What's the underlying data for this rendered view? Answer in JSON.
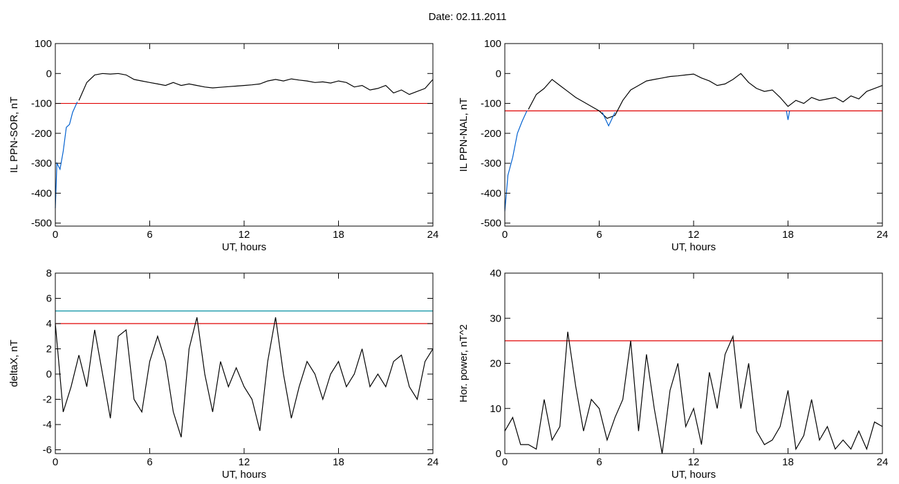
{
  "title": "Date:  02.11.2011",
  "chart_data": [
    {
      "type": "line",
      "ylabel": "IL PPN-SOR, nT",
      "xlabel": "UT, hours",
      "xlim": [
        0,
        24
      ],
      "xticks": [
        0,
        6,
        12,
        18,
        24
      ],
      "ylim": [
        -510,
        100
      ],
      "yticks": [
        100,
        0,
        -100,
        -200,
        -300,
        -400,
        -500
      ],
      "hlines": [
        {
          "value": -100,
          "color": "#e00000"
        }
      ],
      "series": [
        {
          "color": "#000000",
          "x": [
            1.5,
            2,
            2.5,
            3,
            3.5,
            4,
            4.5,
            5,
            5.5,
            6,
            6.5,
            7,
            7.5,
            8,
            8.5,
            9,
            9.5,
            10,
            10.5,
            11,
            11.5,
            12,
            12.5,
            13,
            13.5,
            14,
            14.5,
            15,
            15.5,
            16,
            16.5,
            17,
            17.5,
            18,
            18.5,
            19,
            19.5,
            20,
            20.5,
            21,
            21.5,
            22,
            22.5,
            23,
            23.5,
            24
          ],
          "values": [
            -90,
            -30,
            -5,
            0,
            -2,
            0,
            -5,
            -20,
            -25,
            -30,
            -35,
            -40,
            -30,
            -40,
            -35,
            -40,
            -45,
            -48,
            -46,
            -44,
            -42,
            -40,
            -38,
            -35,
            -25,
            -20,
            -25,
            -18,
            -22,
            -25,
            -30,
            -28,
            -32,
            -25,
            -30,
            -45,
            -40,
            -55,
            -50,
            -40,
            -65,
            -55,
            -70,
            -60,
            -50,
            -20
          ]
        },
        {
          "color": "#0060d0",
          "x": [
            0,
            0.1,
            0.3,
            0.5,
            0.7,
            0.9,
            1.1,
            1.4
          ],
          "values": [
            -450,
            -300,
            -320,
            -260,
            -180,
            -170,
            -130,
            -95
          ]
        }
      ]
    },
    {
      "type": "line",
      "ylabel": "IL PPN-NAL, nT",
      "xlabel": "UT, hours",
      "xlim": [
        0,
        24
      ],
      "xticks": [
        0,
        6,
        12,
        18,
        24
      ],
      "ylim": [
        -510,
        100
      ],
      "yticks": [
        100,
        0,
        -100,
        -200,
        -300,
        -400,
        -500
      ],
      "hlines": [
        {
          "value": -125,
          "color": "#e00000"
        }
      ],
      "series": [
        {
          "color": "#000000",
          "x": [
            1.5,
            2,
            2.5,
            3,
            3.5,
            4,
            4.5,
            5,
            5.5,
            6,
            6.5,
            7,
            7.5,
            8,
            8.5,
            9,
            9.5,
            10,
            10.5,
            11,
            11.5,
            12,
            12.5,
            13,
            13.5,
            14,
            14.5,
            15,
            15.5,
            16,
            16.5,
            17,
            17.5,
            18,
            18.5,
            19,
            19.5,
            20,
            20.5,
            21,
            21.5,
            22,
            22.5,
            23,
            23.5,
            24
          ],
          "values": [
            -120,
            -70,
            -50,
            -20,
            -40,
            -60,
            -80,
            -95,
            -110,
            -125,
            -150,
            -140,
            -90,
            -55,
            -40,
            -25,
            -20,
            -15,
            -10,
            -8,
            -5,
            -2,
            -15,
            -25,
            -40,
            -35,
            -20,
            0,
            -30,
            -50,
            -60,
            -55,
            -80,
            -110,
            -90,
            -100,
            -80,
            -90,
            -85,
            -80,
            -95,
            -75,
            -85,
            -60,
            -50,
            -40
          ]
        },
        {
          "color": "#0060d0",
          "x": [
            0,
            0.2,
            0.5,
            0.8,
            1.1,
            1.4,
            1.5,
            6.2,
            6.6,
            7,
            7.1,
            17.9,
            18,
            18.1
          ],
          "values": [
            -460,
            -340,
            -280,
            -200,
            -160,
            -125,
            null,
            -130,
            -175,
            -130,
            null,
            -125,
            -155,
            -125
          ]
        }
      ]
    },
    {
      "type": "line",
      "ylabel": "deltaX, nT",
      "xlabel": "UT, hours",
      "xlim": [
        0,
        24
      ],
      "xticks": [
        0,
        6,
        12,
        18,
        24
      ],
      "ylim": [
        -6.3,
        8
      ],
      "yticks": [
        8,
        6,
        4,
        2,
        0,
        -2,
        -4,
        -6
      ],
      "hlines": [
        {
          "value": 5,
          "color": "#008fa0"
        },
        {
          "value": 4,
          "color": "#e00000"
        }
      ],
      "series": [
        {
          "color": "#000000",
          "x": [
            0,
            0.5,
            1,
            1.5,
            2,
            2.5,
            3,
            3.5,
            4,
            4.5,
            5,
            5.5,
            6,
            6.5,
            7,
            7.5,
            8,
            8.5,
            9,
            9.5,
            10,
            10.5,
            11,
            11.5,
            12,
            12.5,
            13,
            13.5,
            14,
            14.5,
            15,
            15.5,
            16,
            16.5,
            17,
            17.5,
            18,
            18.5,
            19,
            19.5,
            20,
            20.5,
            21,
            21.5,
            22,
            22.5,
            23,
            23.5,
            24
          ],
          "values": [
            4,
            -3,
            -1,
            1.5,
            -1,
            3.5,
            0,
            -3.5,
            3,
            3.5,
            -2,
            -3,
            1,
            3,
            1,
            -3,
            -5,
            2,
            4.5,
            0,
            -3,
            1,
            -1,
            0.5,
            -1,
            -2,
            -4.5,
            1,
            4.5,
            0,
            -3.5,
            -1,
            1,
            0,
            -2,
            0,
            1,
            -1,
            0,
            2,
            -1,
            0,
            -1,
            1,
            1.5,
            -1,
            -2,
            1,
            2
          ]
        }
      ]
    },
    {
      "type": "line",
      "ylabel": "Hor. power, nT^2",
      "xlabel": "UT, hours",
      "xlim": [
        0,
        24
      ],
      "xticks": [
        0,
        6,
        12,
        18,
        24
      ],
      "ylim": [
        0,
        40
      ],
      "yticks": [
        40,
        30,
        20,
        10,
        0
      ],
      "hlines": [
        {
          "value": 25,
          "color": "#e00000"
        }
      ],
      "series": [
        {
          "color": "#000000",
          "x": [
            0,
            0.5,
            1,
            1.5,
            2,
            2.5,
            3,
            3.5,
            4,
            4.5,
            5,
            5.5,
            6,
            6.5,
            7,
            7.5,
            8,
            8.5,
            9,
            9.5,
            10,
            10.5,
            11,
            11.5,
            12,
            12.5,
            13,
            13.5,
            14,
            14.5,
            15,
            15.5,
            16,
            16.5,
            17,
            17.5,
            18,
            18.5,
            19,
            19.5,
            20,
            20.5,
            21,
            21.5,
            22,
            22.5,
            23,
            23.5,
            24
          ],
          "values": [
            5,
            8,
            2,
            2,
            1,
            12,
            3,
            6,
            27,
            15,
            5,
            12,
            10,
            3,
            8,
            12,
            25,
            5,
            22,
            10,
            0,
            14,
            20,
            6,
            10,
            2,
            18,
            10,
            22,
            26,
            10,
            20,
            5,
            2,
            3,
            6,
            14,
            1,
            4,
            12,
            3,
            6,
            1,
            3,
            1,
            5,
            1,
            7,
            6
          ]
        }
      ]
    }
  ]
}
